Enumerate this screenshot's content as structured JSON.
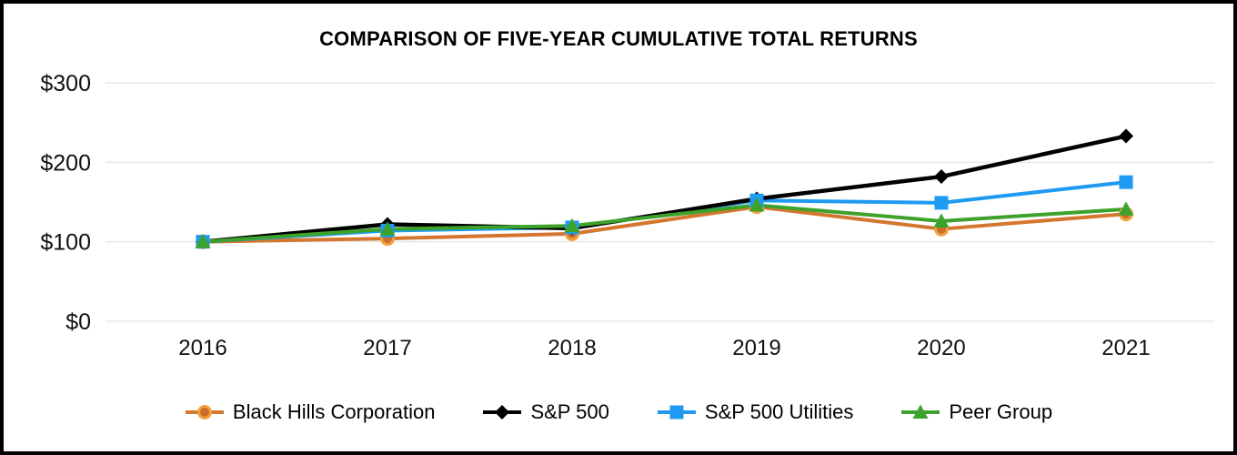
{
  "title": "COMPARISON OF FIVE-YEAR CUMULATIVE TOTAL RETURNS",
  "chart_data": {
    "type": "line",
    "x": [
      "2016",
      "2017",
      "2018",
      "2019",
      "2020",
      "2021"
    ],
    "series": [
      {
        "name": "Black Hills Corporation",
        "color": "#d5762f",
        "marker": "circle",
        "marker_fill": "#cc6c2d",
        "marker_stroke": "#f2a23c",
        "values": [
          100,
          104,
          110,
          144,
          116,
          135
        ]
      },
      {
        "name": "S&P 500",
        "color": "#000000",
        "marker": "diamond",
        "values": [
          100,
          122,
          117,
          154,
          182,
          233
        ]
      },
      {
        "name": "S&P 500 Utilities",
        "color": "#1e9af0",
        "marker": "square",
        "values": [
          100,
          114,
          118,
          152,
          149,
          175
        ]
      },
      {
        "name": "Peer Group",
        "color": "#3da22b",
        "marker": "triangle",
        "values": [
          100,
          116,
          120,
          146,
          126,
          141
        ]
      }
    ],
    "y_ticks": [
      {
        "label": "$0",
        "value": 0
      },
      {
        "label": "$100",
        "value": 100
      },
      {
        "label": "$200",
        "value": 200
      },
      {
        "label": "$300",
        "value": 300
      }
    ],
    "ylim": [
      0,
      300
    ],
    "xlabel": "",
    "ylabel": "",
    "grid": "horizontal",
    "grid_color": "#e8e8e8",
    "legend_position": "bottom"
  }
}
